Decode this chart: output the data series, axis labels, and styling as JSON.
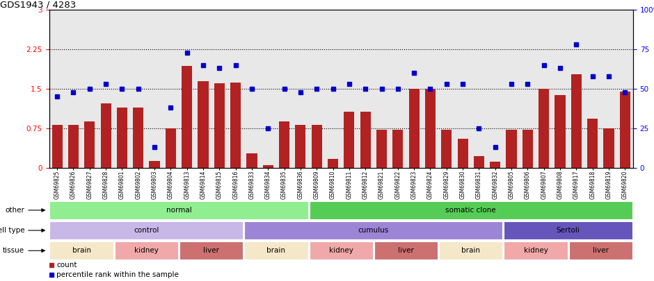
{
  "title": "GDS1943 / 4283",
  "samples": [
    "GSM69825",
    "GSM69826",
    "GSM69827",
    "GSM69828",
    "GSM69801",
    "GSM69802",
    "GSM69803",
    "GSM69804",
    "GSM69813",
    "GSM69814",
    "GSM69815",
    "GSM69816",
    "GSM69833",
    "GSM69834",
    "GSM69835",
    "GSM69836",
    "GSM69809",
    "GSM69810",
    "GSM69811",
    "GSM69812",
    "GSM69821",
    "GSM69822",
    "GSM69823",
    "GSM69824",
    "GSM69829",
    "GSM69830",
    "GSM69831",
    "GSM69832",
    "GSM69805",
    "GSM69806",
    "GSM69807",
    "GSM69808",
    "GSM69817",
    "GSM69818",
    "GSM69819",
    "GSM69820"
  ],
  "counts": [
    0.82,
    0.82,
    0.88,
    1.22,
    1.15,
    1.15,
    0.13,
    0.75,
    1.93,
    1.65,
    1.6,
    1.62,
    0.28,
    0.05,
    0.88,
    0.82,
    0.82,
    0.17,
    1.07,
    1.07,
    0.72,
    0.72,
    1.5,
    1.5,
    0.72,
    0.55,
    0.22,
    0.12,
    0.72,
    0.72,
    1.5,
    1.38,
    1.78,
    0.93,
    0.75,
    1.45
  ],
  "percentile": [
    45,
    48,
    50,
    53,
    50,
    50,
    13,
    38,
    73,
    65,
    63,
    65,
    50,
    25,
    50,
    48,
    50,
    50,
    53,
    50,
    50,
    50,
    60,
    50,
    53,
    53,
    25,
    13,
    53,
    53,
    65,
    63,
    78,
    58,
    58,
    48
  ],
  "bar_color": "#B22222",
  "dot_color": "#0000CC",
  "ylim_left": [
    0,
    3
  ],
  "ylim_right": [
    0,
    100
  ],
  "yticks_left": [
    0,
    0.75,
    1.5,
    2.25,
    3
  ],
  "yticks_right": [
    0,
    25,
    50,
    75,
    100
  ],
  "hlines": [
    0.75,
    1.5,
    2.25
  ],
  "bg_color": "#E8E8E8",
  "annotation_rows": [
    {
      "label": "other",
      "segments": [
        {
          "text": "normal",
          "start": 0,
          "end": 16,
          "color": "#90EE90"
        },
        {
          "text": "somatic clone",
          "start": 16,
          "end": 36,
          "color": "#55CC55"
        }
      ]
    },
    {
      "label": "cell type",
      "segments": [
        {
          "text": "control",
          "start": 0,
          "end": 12,
          "color": "#C8B8E8"
        },
        {
          "text": "cumulus",
          "start": 12,
          "end": 28,
          "color": "#9B85D4"
        },
        {
          "text": "Sertoli",
          "start": 28,
          "end": 36,
          "color": "#6655BB"
        }
      ]
    },
    {
      "label": "tissue",
      "segments": [
        {
          "text": "brain",
          "start": 0,
          "end": 4,
          "color": "#F5E8C8"
        },
        {
          "text": "kidney",
          "start": 4,
          "end": 8,
          "color": "#F0A8A8"
        },
        {
          "text": "liver",
          "start": 8,
          "end": 12,
          "color": "#CC7070"
        },
        {
          "text": "brain",
          "start": 12,
          "end": 16,
          "color": "#F5E8C8"
        },
        {
          "text": "kidney",
          "start": 16,
          "end": 20,
          "color": "#F0A8A8"
        },
        {
          "text": "liver",
          "start": 20,
          "end": 24,
          "color": "#CC7070"
        },
        {
          "text": "brain",
          "start": 24,
          "end": 28,
          "color": "#F5E8C8"
        },
        {
          "text": "kidney",
          "start": 28,
          "end": 32,
          "color": "#F0A8A8"
        },
        {
          "text": "liver",
          "start": 32,
          "end": 36,
          "color": "#CC7070"
        }
      ]
    }
  ],
  "legend_items": [
    {
      "color": "#B22222",
      "label": "count"
    },
    {
      "color": "#0000CC",
      "label": "percentile rank within the sample"
    }
  ]
}
